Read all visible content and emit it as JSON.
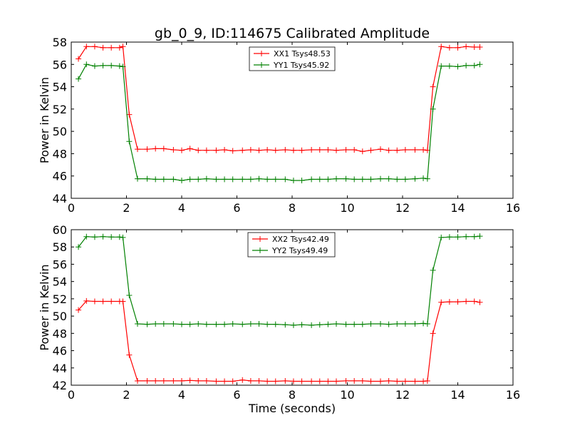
{
  "title": "gb_0_9, ID:114675 Calibrated Amplitude",
  "chart_data": [
    {
      "type": "line",
      "title": "gb_0_9, ID:114675 Calibrated Amplitude",
      "xlabel": "",
      "ylabel": "Power in Kelvin",
      "xlim": [
        0,
        16
      ],
      "ylim": [
        44,
        58
      ],
      "xticks": [
        0,
        2,
        4,
        6,
        8,
        10,
        12,
        14,
        16
      ],
      "yticks": [
        44,
        46,
        48,
        50,
        52,
        54,
        56,
        58
      ],
      "grid": false,
      "legend_position": "top-center",
      "x": [
        0.26,
        0.55,
        0.85,
        1.15,
        1.45,
        1.75,
        1.87,
        2.1,
        2.4,
        2.75,
        3.05,
        3.35,
        3.7,
        4.0,
        4.3,
        4.6,
        4.9,
        5.25,
        5.55,
        5.85,
        6.2,
        6.5,
        6.8,
        7.1,
        7.4,
        7.75,
        8.05,
        8.35,
        8.7,
        9.0,
        9.3,
        9.6,
        9.95,
        10.25,
        10.55,
        10.85,
        11.2,
        11.5,
        11.8,
        12.1,
        12.45,
        12.75,
        12.9,
        13.1,
        13.4,
        13.7,
        14.0,
        14.3,
        14.6,
        14.8
      ],
      "series": [
        {
          "name": "XX1 Tsys48.53",
          "color": "#ff0000",
          "values": [
            56.5,
            57.6,
            57.6,
            57.5,
            57.5,
            57.5,
            57.6,
            51.5,
            48.4,
            48.4,
            48.45,
            48.45,
            48.35,
            48.3,
            48.45,
            48.3,
            48.3,
            48.3,
            48.35,
            48.25,
            48.3,
            48.35,
            48.3,
            48.35,
            48.3,
            48.35,
            48.3,
            48.3,
            48.35,
            48.35,
            48.35,
            48.3,
            48.35,
            48.35,
            48.2,
            48.3,
            48.4,
            48.3,
            48.3,
            48.35,
            48.35,
            48.35,
            48.3,
            54.0,
            57.6,
            57.5,
            57.5,
            57.6,
            57.55,
            57.55
          ]
        },
        {
          "name": "YY1 Tsys45.92",
          "color": "#008000",
          "values": [
            54.7,
            56.0,
            55.85,
            55.9,
            55.9,
            55.85,
            55.8,
            49.1,
            45.75,
            45.75,
            45.7,
            45.7,
            45.7,
            45.6,
            45.7,
            45.7,
            45.75,
            45.7,
            45.7,
            45.7,
            45.7,
            45.7,
            45.75,
            45.7,
            45.7,
            45.7,
            45.6,
            45.6,
            45.7,
            45.7,
            45.7,
            45.75,
            45.75,
            45.7,
            45.7,
            45.7,
            45.75,
            45.75,
            45.7,
            45.7,
            45.75,
            45.8,
            45.75,
            52.0,
            55.85,
            55.85,
            55.8,
            55.9,
            55.9,
            56.0
          ]
        }
      ]
    },
    {
      "type": "line",
      "title": "",
      "xlabel": "Time (seconds)",
      "ylabel": "Power in Kelvin",
      "xlim": [
        0,
        16
      ],
      "ylim": [
        42,
        60
      ],
      "xticks": [
        0,
        2,
        4,
        6,
        8,
        10,
        12,
        14,
        16
      ],
      "yticks": [
        42,
        44,
        46,
        48,
        50,
        52,
        54,
        56,
        58,
        60
      ],
      "grid": false,
      "legend_position": "top-center",
      "x": [
        0.26,
        0.55,
        0.85,
        1.15,
        1.45,
        1.75,
        1.87,
        2.1,
        2.4,
        2.75,
        3.05,
        3.35,
        3.7,
        4.0,
        4.3,
        4.6,
        4.9,
        5.25,
        5.55,
        5.85,
        6.2,
        6.5,
        6.8,
        7.1,
        7.4,
        7.75,
        8.05,
        8.35,
        8.7,
        9.0,
        9.3,
        9.6,
        9.95,
        10.25,
        10.55,
        10.85,
        11.2,
        11.5,
        11.8,
        12.1,
        12.45,
        12.75,
        12.9,
        13.1,
        13.4,
        13.7,
        14.0,
        14.3,
        14.6,
        14.8
      ],
      "series": [
        {
          "name": "XX2 Tsys42.49",
          "color": "#ff0000",
          "values": [
            50.7,
            51.75,
            51.7,
            51.7,
            51.7,
            51.7,
            51.7,
            45.5,
            42.5,
            42.5,
            42.5,
            42.5,
            42.5,
            42.5,
            42.55,
            42.5,
            42.5,
            42.45,
            42.45,
            42.45,
            42.6,
            42.5,
            42.5,
            42.45,
            42.45,
            42.5,
            42.45,
            42.45,
            42.45,
            42.45,
            42.45,
            42.45,
            42.5,
            42.5,
            42.5,
            42.45,
            42.45,
            42.5,
            42.45,
            42.45,
            42.45,
            42.45,
            42.5,
            48.0,
            51.6,
            51.65,
            51.65,
            51.7,
            51.7,
            51.6
          ]
        },
        {
          "name": "YY2 Tsys49.49",
          "color": "#008000",
          "values": [
            58.0,
            59.2,
            59.15,
            59.2,
            59.15,
            59.15,
            59.1,
            52.4,
            49.1,
            49.05,
            49.1,
            49.1,
            49.1,
            49.05,
            49.05,
            49.1,
            49.05,
            49.05,
            49.05,
            49.1,
            49.05,
            49.1,
            49.1,
            49.05,
            49.05,
            49.0,
            48.95,
            49.0,
            48.95,
            49.0,
            49.05,
            49.1,
            49.05,
            49.05,
            49.05,
            49.1,
            49.1,
            49.05,
            49.1,
            49.1,
            49.1,
            49.15,
            49.1,
            55.3,
            59.1,
            59.15,
            59.15,
            59.2,
            59.2,
            59.25
          ]
        }
      ]
    }
  ]
}
